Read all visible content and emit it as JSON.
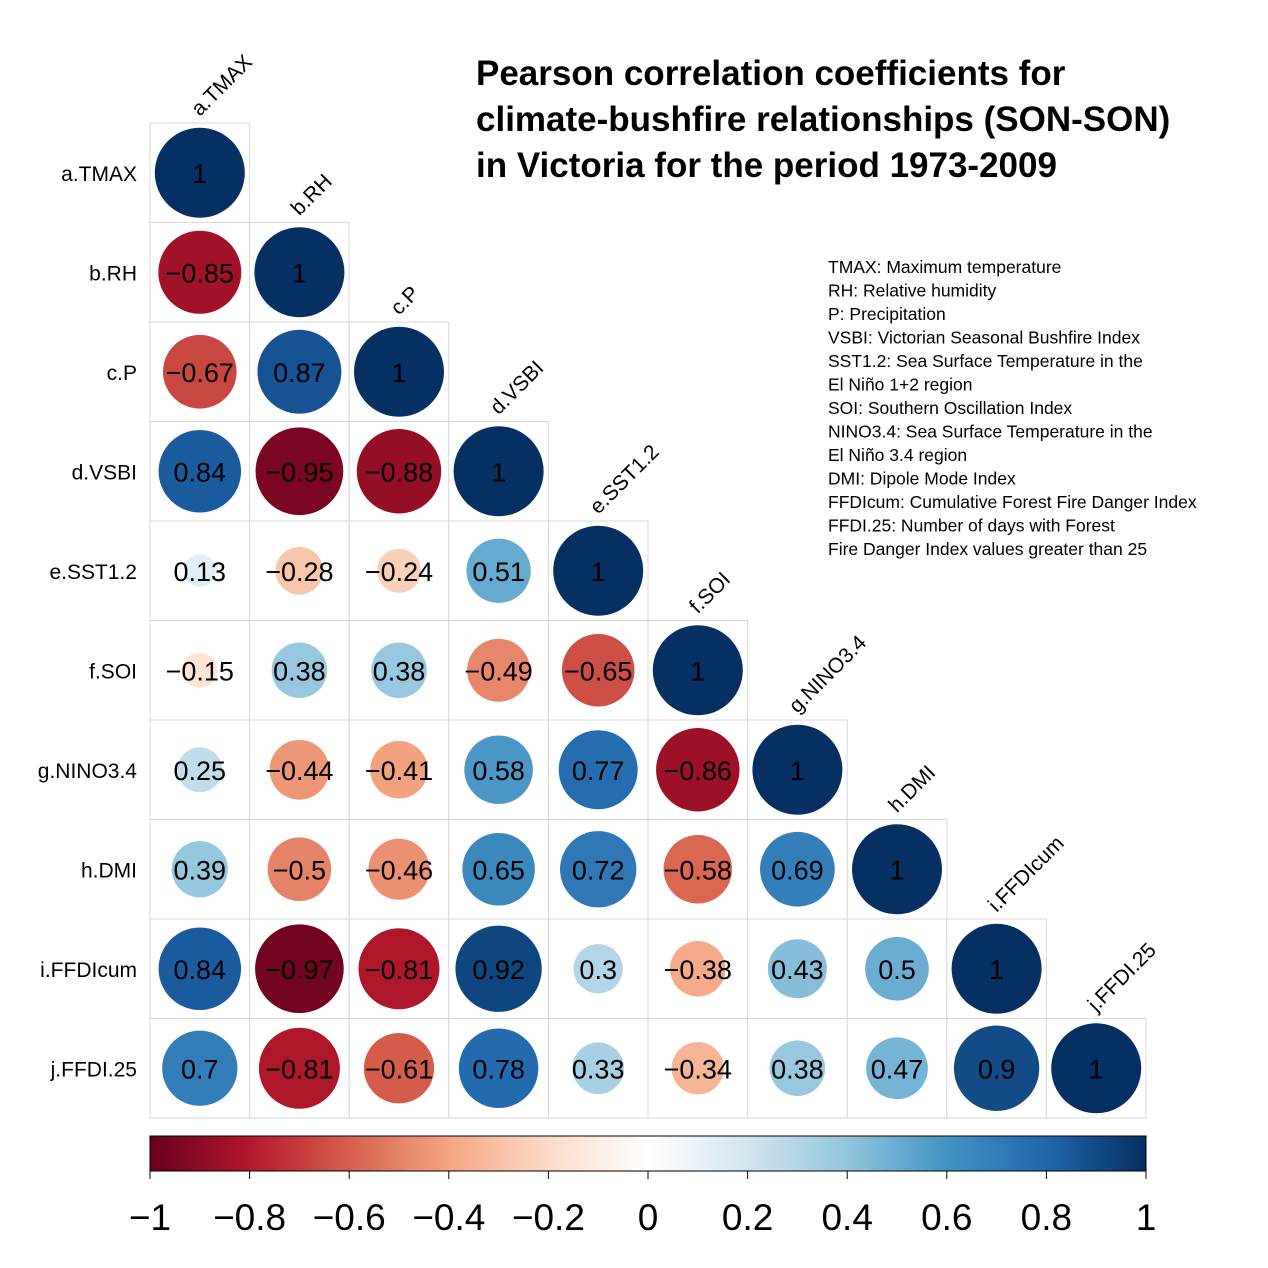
{
  "chart_data": {
    "type": "heatmap",
    "title_lines": [
      "Pearson correlation coefficients for",
      "climate-bushfire relationships (SON-SON)",
      "in Victoria for the period 1973-2009"
    ],
    "variables": [
      "a.TMAX",
      "b.RH",
      "c.P",
      "d.VSBI",
      "e.SST1.2",
      "f.SOI",
      "g.NINO3.4",
      "h.DMI",
      "i.FFDIcum",
      "j.FFDI.25"
    ],
    "lower_triangle": [
      [
        1
      ],
      [
        -0.85,
        1
      ],
      [
        -0.67,
        0.87,
        1
      ],
      [
        0.84,
        -0.95,
        -0.88,
        1
      ],
      [
        0.13,
        -0.28,
        -0.24,
        0.51,
        1
      ],
      [
        -0.15,
        0.38,
        0.38,
        -0.49,
        -0.65,
        1
      ],
      [
        0.25,
        -0.44,
        -0.41,
        0.58,
        0.77,
        -0.86,
        1
      ],
      [
        0.39,
        -0.5,
        -0.46,
        0.65,
        0.72,
        -0.58,
        0.69,
        1
      ],
      [
        0.84,
        -0.97,
        -0.81,
        0.92,
        0.3,
        -0.38,
        0.43,
        0.5,
        1
      ],
      [
        0.7,
        -0.81,
        -0.61,
        0.78,
        0.33,
        -0.34,
        0.38,
        0.47,
        0.9,
        1
      ]
    ],
    "method": "circle",
    "colorbar": {
      "range": [
        -1,
        1
      ],
      "ticks": [
        "−1",
        "−0.8",
        "−0.6",
        "−0.4",
        "−0.2",
        "0",
        "0.2",
        "0.4",
        "0.6",
        "0.8",
        "1"
      ],
      "palette": [
        "#67001F",
        "#B2182B",
        "#D6604D",
        "#F4A582",
        "#FDDBC7",
        "#FFFFFF",
        "#D1E5F0",
        "#92C5DE",
        "#4393C3",
        "#2166AC",
        "#053061"
      ]
    },
    "legend_lines": [
      "TMAX: Maximum temperature",
      "RH: Relative humidity",
      "P: Precipitation",
      "VSBI: Victorian Seasonal Bushfire Index",
      "SST1.2: Sea Surface Temperature in the",
      "El Niño 1+2 region",
      "SOI: Southern Oscillation Index",
      "NINO3.4: Sea Surface Temperature in the",
      "El Niño 3.4 region",
      "DMI: Dipole Mode Index",
      "FFDIcum: Cumulative Forest Fire Danger Index",
      "FFDI.25: Number of days with Forest",
      "Fire Danger Index values greater than 25"
    ]
  }
}
